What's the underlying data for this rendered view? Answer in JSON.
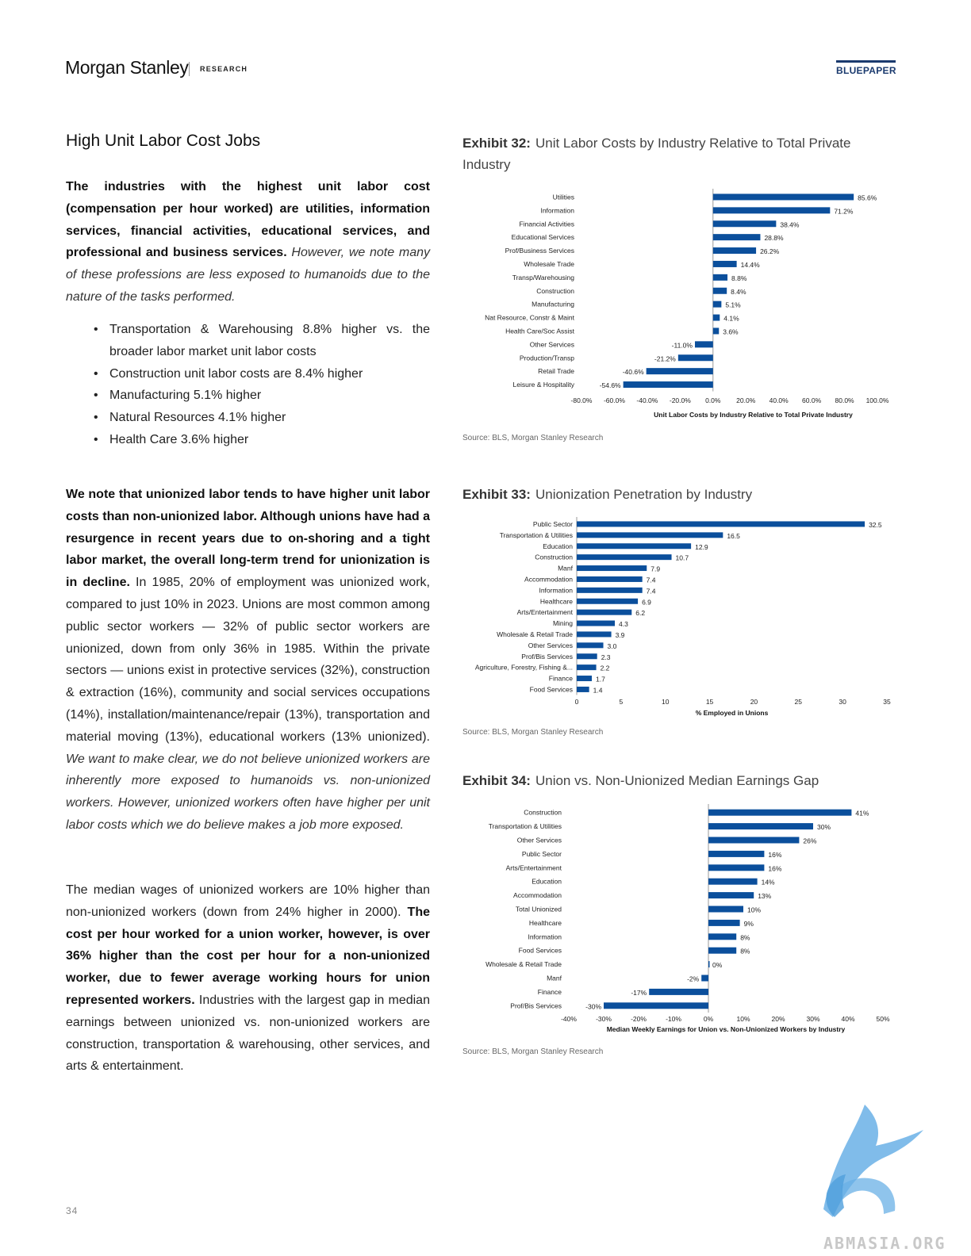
{
  "header": {
    "brand": "Morgan Stanley",
    "section": "RESEARCH",
    "doc_type": "BLUEPAPER"
  },
  "left": {
    "heading": "High Unit Labor Cost Jobs",
    "p1_bold": "The industries with the highest unit labor cost (compensation per hour worked) are utilities, information services, financial activities, educational services, and professional and business services.",
    "p1_italic": "However, we note many of these professions are less exposed to humanoids due to the nature of the tasks performed.",
    "bullets": [
      "Transportation & Warehousing 8.8% higher vs. the broader labor market unit labor costs",
      "Construction unit labor costs are 8.4% higher",
      "Manufacturing 5.1% higher",
      "Natural Resources 4.1% higher",
      "Health Care 3.6% higher"
    ],
    "p2_bold": "We note that unionized labor tends to have higher unit labor costs than non-unionized labor. Although unions have had a resurgence in recent years due to on-shoring and a tight labor market, the overall long-term trend for unionization is in decline.",
    "p2_text": "In 1985, 20% of employment was unionized work, compared to just 10% in 2023. Unions are most common among public sector workers — 32% of public sector workers are unionized, down from only 36% in 1985. Within the private sectors — unions exist in protective services (32%), construction & extraction (16%), community and social services occupations (14%), installation/maintenance/repair (13%), transportation and material moving (13%), educational workers (13% unionized).",
    "p2_italic": "We want to make clear, we do not believe unionized workers are inherently more exposed to humanoids vs. non-unionized workers. However, unionized workers often have higher per unit labor costs which we do believe makes a job more exposed.",
    "p3_text": "The median wages of unionized workers are 10% higher than non-unionized workers (down from 24% higher in 2000).",
    "p3_bold": "The cost per hour worked for a union worker, however, is over 36% higher than the cost per hour for a non-unionized worker, due to fewer average working hours for union represented workers.",
    "p3_text2": "Industries with the largest gap in median earnings between unionized vs. non-unionized workers are construction, transportation & warehousing, other services, and arts & entertainment."
  },
  "exhibits": [
    {
      "num": "Exhibit 32:",
      "title": "Unit Labor Costs by Industry Relative to Total Private Industry",
      "source": "Source: BLS, Morgan Stanley Research"
    },
    {
      "num": "Exhibit 33:",
      "title": "Unionization Penetration by Industry",
      "source": "Source: BLS, Morgan Stanley Research"
    },
    {
      "num": "Exhibit 34:",
      "title": "Union vs. Non-Unionized Median Earnings Gap",
      "source": "Source: BLS, Morgan Stanley Research"
    }
  ],
  "chart_data": [
    {
      "type": "bar",
      "orientation": "horizontal",
      "categories": [
        "Utilities",
        "Information",
        "Financial Activities",
        "Educational Services",
        "Prof/Business Services",
        "Wholesale Trade",
        "Transp/Warehousing",
        "Construction",
        "Manufacturing",
        "Nat Resource, Constr & Maint",
        "Health Care/Soc Assist",
        "Other Services",
        "Production/Transp",
        "Retail Trade",
        "Leisure & Hospitality"
      ],
      "values": [
        85.6,
        71.2,
        38.4,
        28.8,
        26.2,
        14.4,
        8.8,
        8.4,
        5.1,
        4.1,
        3.6,
        -11.0,
        -21.2,
        -40.6,
        -54.6
      ],
      "value_labels": [
        "85.6%",
        "71.2%",
        "38.4%",
        "28.8%",
        "26.2%",
        "14.4%",
        "8.8%",
        "8.4%",
        "5.1%",
        "4.1%",
        "3.6%",
        "-11.0%",
        "-21.2%",
        "-40.6%",
        "-54.6%"
      ],
      "xlabel": "Unit Labor Costs by Industry Relative to Total Private Industry",
      "xlim": [
        -80,
        100
      ],
      "xticks": [
        -80,
        -60,
        -40,
        -20,
        0,
        20,
        40,
        60,
        80,
        100
      ],
      "xtick_labels": [
        "-80.0%",
        "-60.0%",
        "-40.0%",
        "-20.0%",
        "0.0%",
        "20.0%",
        "40.0%",
        "60.0%",
        "80.0%",
        "100.0%"
      ],
      "color": "#0b4f9c"
    },
    {
      "type": "bar",
      "orientation": "horizontal",
      "categories": [
        "Public Sector",
        "Transportation & Utilities",
        "Education",
        "Construction",
        "Manf",
        "Accommodation",
        "Information",
        "Healthcare",
        "Arts/Entertainment",
        "Mining",
        "Wholesale & Retail Trade",
        "Other Services",
        "Prof/Bis Services",
        "Agriculture, Forestry, Fishing &...",
        "Finance",
        "Food Services"
      ],
      "values": [
        32.5,
        16.5,
        12.9,
        10.7,
        7.9,
        7.4,
        7.4,
        6.9,
        6.2,
        4.3,
        3.9,
        3.0,
        2.3,
        2.2,
        1.7,
        1.4
      ],
      "value_labels": [
        "32.5",
        "16.5",
        "12.9",
        "10.7",
        "7.9",
        "7.4",
        "7.4",
        "6.9",
        "6.2",
        "4.3",
        "3.9",
        "3.0",
        "2.3",
        "2.2",
        "1.7",
        "1.4"
      ],
      "xlabel": "% Employed in Unions",
      "xlim": [
        0,
        35
      ],
      "xticks": [
        0,
        5,
        10,
        15,
        20,
        25,
        30,
        35
      ],
      "xtick_labels": [
        "0",
        "5",
        "10",
        "15",
        "20",
        "25",
        "30",
        "35"
      ],
      "color": "#0b4f9c"
    },
    {
      "type": "bar",
      "orientation": "horizontal",
      "categories": [
        "Construction",
        "Transportation & Utilities",
        "Other Services",
        "Public Sector",
        "Arts/Entertainment",
        "Education",
        "Accommodation",
        "Total Unionized",
        "Healthcare",
        "Information",
        "Food Services",
        "Wholesale & Retail Trade",
        "Manf",
        "Finance",
        "Prof/Bis Services"
      ],
      "values": [
        41,
        30,
        26,
        16,
        16,
        14,
        13,
        10,
        9,
        8,
        8,
        0,
        -2,
        -17,
        -30
      ],
      "value_labels": [
        "41%",
        "30%",
        "26%",
        "16%",
        "16%",
        "14%",
        "13%",
        "10%",
        "9%",
        "8%",
        "8%",
        "0%",
        "-2%",
        "-17%",
        "-30%"
      ],
      "xlabel": "Median Weekly Earnings for Union vs. Non-Unionized Workers by Industry",
      "xlim": [
        -40,
        50
      ],
      "xticks": [
        -40,
        -30,
        -20,
        -10,
        0,
        10,
        20,
        30,
        40,
        50
      ],
      "xtick_labels": [
        "-40%",
        "-30%",
        "-20%",
        "-10%",
        "0%",
        "10%",
        "20%",
        "30%",
        "40%",
        "50%"
      ],
      "color": "#0b4f9c"
    }
  ],
  "footer": {
    "page_number": "34",
    "watermark": "ABMASIA.ORG"
  }
}
